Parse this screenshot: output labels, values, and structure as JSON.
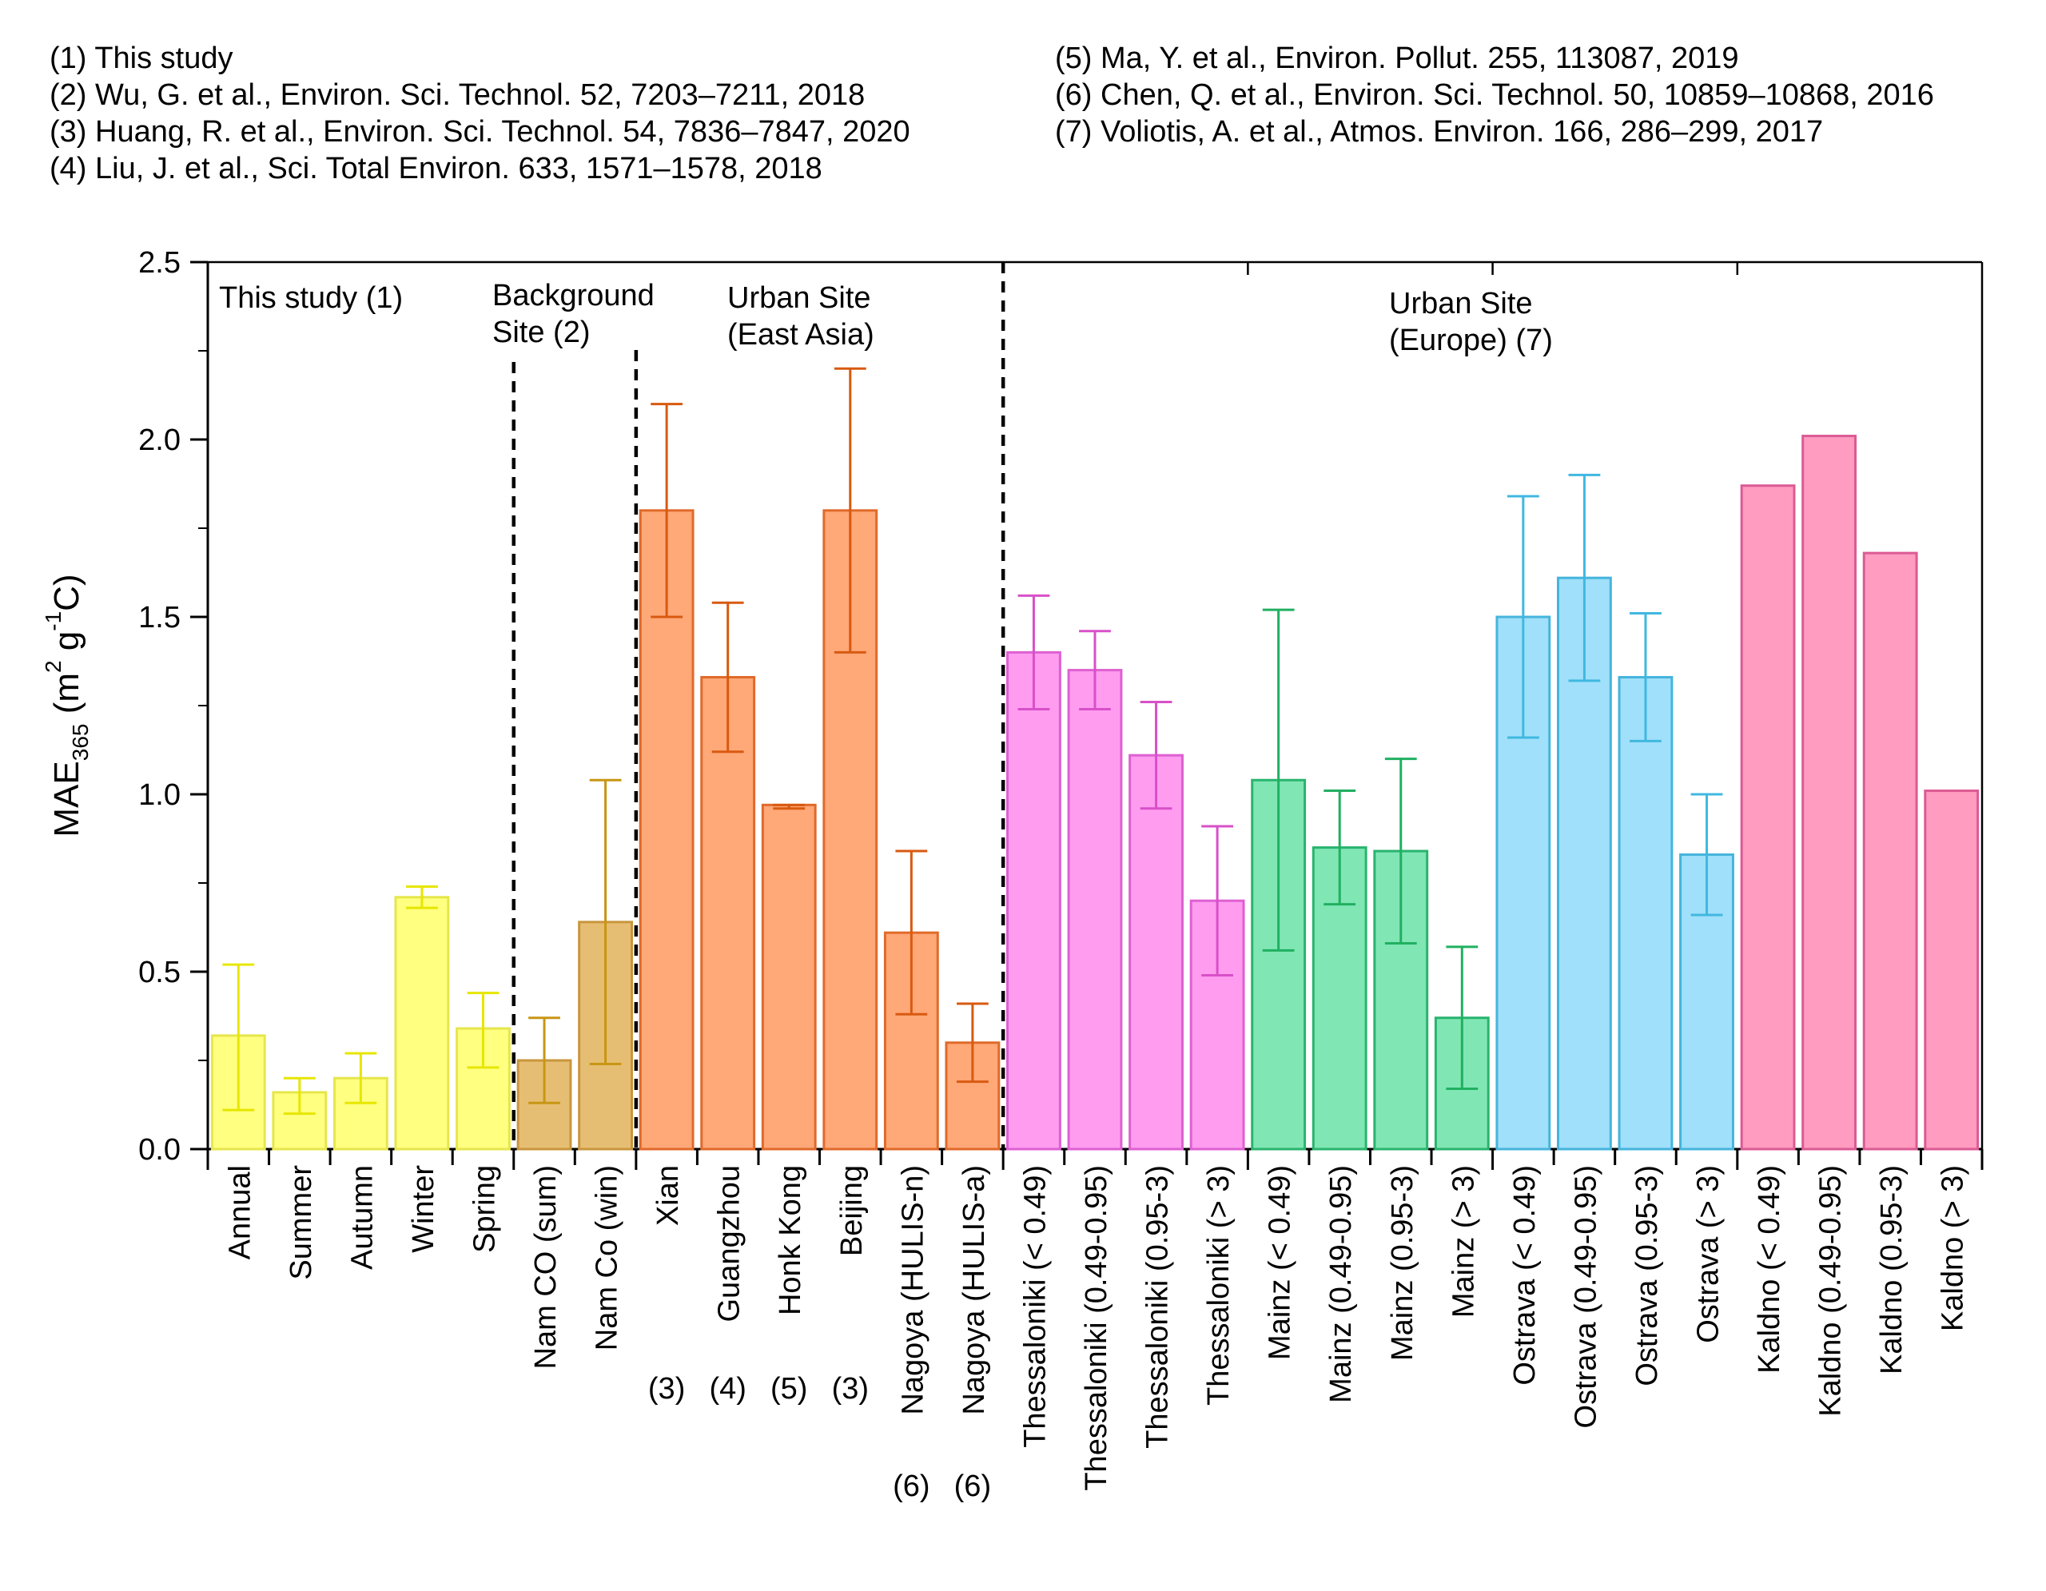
{
  "references": {
    "left": [
      "(1) This study",
      "(2) Wu, G. et al., Environ. Sci. Technol. 52, 7203–7211, 2018",
      "(3) Huang, R. et al., Environ. Sci. Technol. 54, 7836–7847, 2020",
      "(4) Liu, J. et al., Sci. Total Environ. 633, 1571–1578, 2018"
    ],
    "right": [
      "(5) Ma, Y. et al., Environ. Pollut. 255, 113087, 2019",
      "(6) Chen, Q. et al., Environ. Sci. Technol. 50, 10859–10868, 2016",
      "(7) Voliotis, A. et al., Atmos. Environ. 166, 286–299, 2017"
    ]
  },
  "chart_data": {
    "type": "bar",
    "ylabel": {
      "main": "MAE",
      "sub": "365",
      "unit_open": " (m",
      "sup1": "2",
      "mid": " g",
      "sup2": "-1",
      "unit_close": "C)"
    },
    "ylim": [
      0,
      2.5
    ],
    "yticks": [
      "0.0",
      "0.5",
      "1.0",
      "1.5",
      "2.0",
      "2.5"
    ],
    "grid": false,
    "groups": [
      {
        "label_lines": [
          "This study (1)"
        ],
        "start": 0,
        "end": 4,
        "fill": "#ffff80",
        "stroke": "#e6e64d",
        "err": "#e6e600"
      },
      {
        "label_lines": [
          "Background",
          "Site (2)"
        ],
        "start": 5,
        "end": 6,
        "fill": "#e6be73",
        "stroke": "#c8963c",
        "err": "#c89614"
      },
      {
        "label_lines": [
          "Urban Site",
          "(East Asia)"
        ],
        "start": 7,
        "end": 12,
        "fill": "#ffa878",
        "stroke": "#e06a2a",
        "err": "#d85a10"
      },
      {
        "label_lines": [
          "Urban Site",
          "(Europe) (7)"
        ],
        "start": 13,
        "end": 28,
        "fill": "",
        "stroke": "",
        "err": ""
      }
    ],
    "categories": [
      "Annual",
      "Summer",
      "Autumn",
      "Winter",
      "Spring",
      "Nam CO (sum)",
      "Nam Co (win)",
      "Xian",
      "Guangzhou",
      "Honk Kong",
      "Beijing",
      "Nagoya (HULIS-n)",
      "Nagoya (HULIS-a)",
      "Thessaloniki (< 0.49)",
      "Thessaloniki (0.49-0.95)",
      "Thessaloniki (0.95-3)",
      "Thessaloniki (> 3)",
      "Mainz (< 0.49)",
      "Mainz (0.49-0.95)",
      "Mainz (0.95-3)",
      "Mainz (> 3)",
      "Ostrava (< 0.49)",
      "Ostrava (0.49-0.95)",
      "Ostrava (0.95-3)",
      "Ostrava (> 3)",
      "Kaldno (< 0.49)",
      "Kaldno (0.49-0.95)",
      "Kaldno (0.95-3)",
      "Kaldno (> 3)"
    ],
    "ref_marks": [
      "",
      "",
      "",
      "",
      "",
      "",
      "",
      "(3)",
      "(4)",
      "(5)",
      "(3)",
      "(6)",
      "(6)",
      "",
      "",
      "",
      "",
      "",
      "",
      "",
      "",
      "",
      "",
      "",
      "",
      "",
      "",
      "",
      ""
    ],
    "values": [
      0.32,
      0.16,
      0.2,
      0.71,
      0.34,
      0.25,
      0.64,
      1.8,
      1.33,
      0.97,
      1.8,
      0.61,
      0.3,
      1.4,
      1.35,
      1.11,
      0.7,
      1.04,
      0.85,
      0.84,
      0.37,
      1.5,
      1.61,
      1.33,
      0.83,
      1.87,
      2.01,
      1.68,
      1.01
    ],
    "err_low": [
      0.11,
      0.1,
      0.13,
      0.68,
      0.23,
      0.13,
      0.24,
      1.5,
      1.12,
      0.96,
      1.4,
      0.38,
      0.19,
      1.24,
      1.24,
      0.96,
      0.49,
      0.56,
      0.69,
      0.58,
      0.17,
      1.16,
      1.32,
      1.15,
      0.66,
      null,
      null,
      null,
      null
    ],
    "err_high": [
      0.52,
      0.2,
      0.27,
      0.74,
      0.44,
      0.37,
      1.04,
      2.1,
      1.54,
      0.97,
      2.2,
      0.84,
      0.41,
      1.56,
      1.46,
      1.26,
      0.91,
      1.52,
      1.01,
      1.1,
      0.57,
      1.84,
      1.9,
      1.51,
      1.0,
      null,
      null,
      null,
      null
    ],
    "subgroups": [
      {
        "start": 13,
        "end": 16,
        "fill": "#ff9cf0",
        "stroke": "#de60d2",
        "err": "#d850c8"
      },
      {
        "start": 17,
        "end": 20,
        "fill": "#80e6b4",
        "stroke": "#28b46e",
        "err": "#20b060"
      },
      {
        "start": 21,
        "end": 24,
        "fill": "#a0e0fa",
        "stroke": "#46b4dc",
        "err": "#40b8e0"
      },
      {
        "start": 25,
        "end": 28,
        "fill": "#ff9cc0",
        "stroke": "#dc5a94",
        "err": "#dc5a94"
      }
    ]
  }
}
